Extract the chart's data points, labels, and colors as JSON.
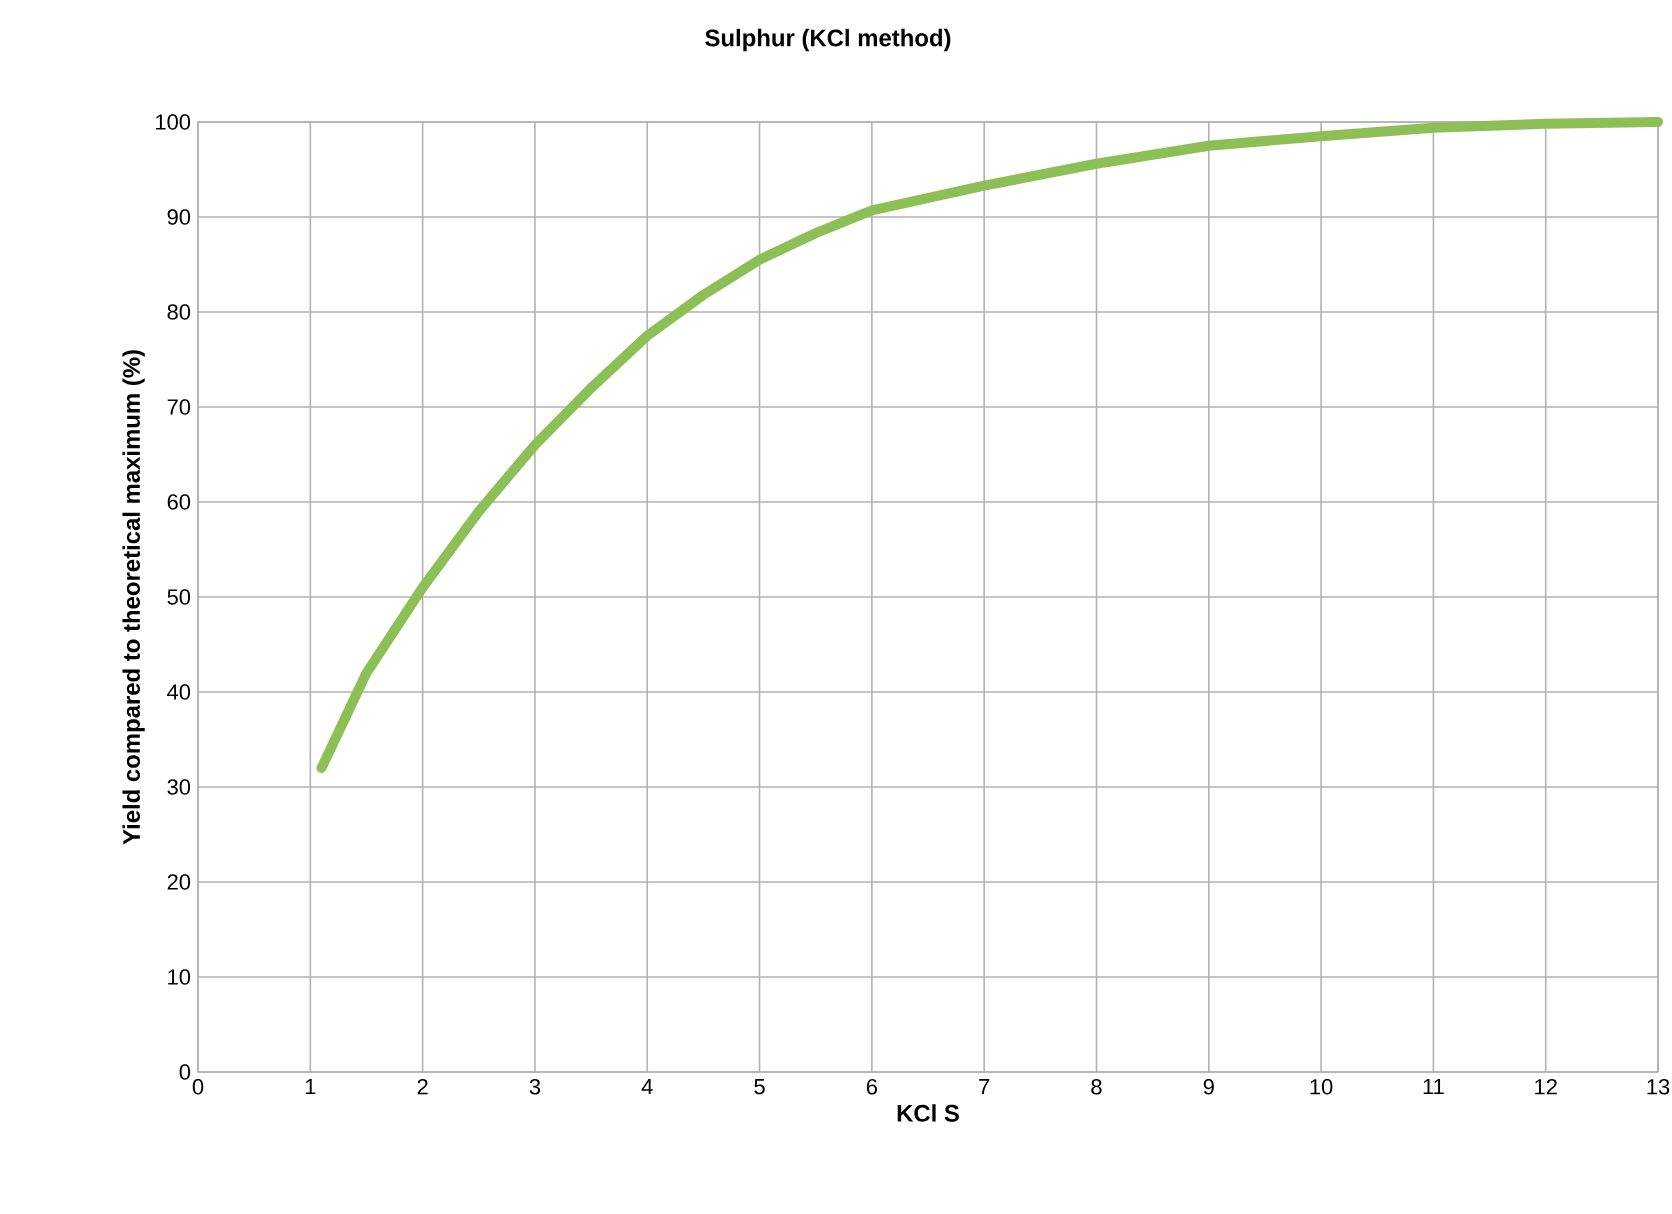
{
  "chart_data": {
    "type": "line",
    "title": "Sulphur (KCl method)",
    "xlabel": "KCl S",
    "ylabel": "Yield compared to theoretical maximum (%)",
    "xlim": [
      0,
      13
    ],
    "ylim": [
      0,
      100
    ],
    "xticks": [
      0,
      1,
      2,
      3,
      4,
      5,
      6,
      7,
      8,
      9,
      10,
      11,
      12,
      13
    ],
    "yticks": [
      0,
      10,
      20,
      30,
      40,
      50,
      60,
      70,
      80,
      90,
      100
    ],
    "grid": true,
    "series": [
      {
        "color": "#8cc056",
        "x": [
          1.1,
          1.5,
          2,
          2.5,
          3,
          3.5,
          4,
          4.5,
          5,
          5.5,
          6,
          7,
          8,
          9,
          10,
          11,
          12,
          13
        ],
        "values": [
          32,
          42,
          51,
          59,
          66,
          72,
          77.5,
          81.8,
          85.5,
          88.3,
          90.7,
          93.3,
          95.6,
          97.5,
          98.5,
          99.4,
          99.8,
          100
        ]
      }
    ]
  }
}
